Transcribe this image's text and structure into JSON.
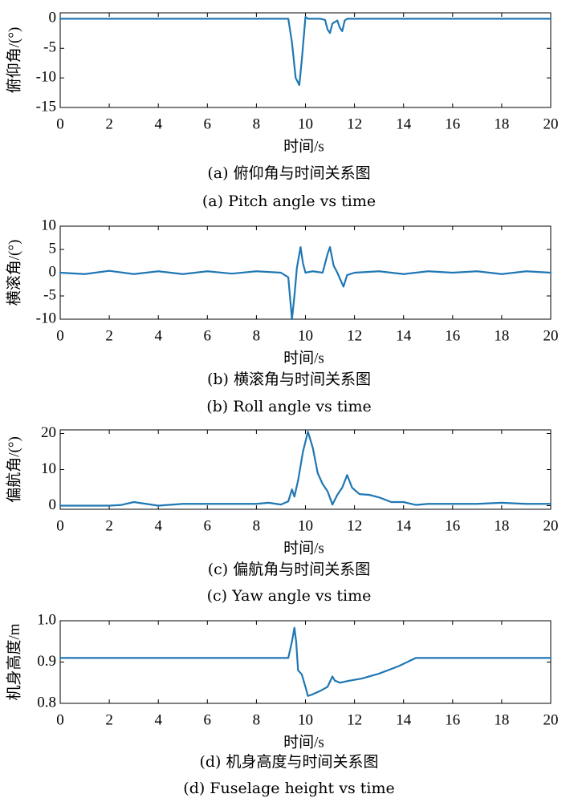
{
  "chart_data": [
    {
      "type": "line",
      "xlabel": "时间/s",
      "ylabel": "俯仰角/(°)",
      "xlim": [
        0,
        20
      ],
      "ylim": [
        -15,
        1
      ],
      "xticks": [
        "0",
        "2",
        "4",
        "6",
        "8",
        "10",
        "12",
        "14",
        "16",
        "18",
        "20"
      ],
      "yticks": [
        "0",
        "-5",
        "-10",
        "-15"
      ],
      "caption_cn": "(a) 俯仰角与时间关系图",
      "caption_en": "(a) Pitch angle vs time",
      "color": "#1f77b4",
      "series": [
        {
          "x": [
            0,
            2,
            4,
            6,
            8,
            9.3,
            9.45,
            9.6,
            9.75,
            9.85,
            10.0,
            10.1,
            10.3,
            10.6,
            10.8,
            10.9,
            11.0,
            11.1,
            11.3,
            11.4,
            11.5,
            11.6,
            11.7,
            12,
            14,
            16,
            18,
            20
          ],
          "y": [
            0,
            0,
            0,
            0,
            0,
            0,
            -4,
            -10,
            -11.2,
            -7,
            0.3,
            0,
            0,
            0,
            -0.2,
            -1.8,
            -2.4,
            -0.8,
            -0.3,
            -1.5,
            -2.1,
            -0.3,
            0,
            0,
            0,
            0,
            0,
            0
          ]
        }
      ]
    },
    {
      "type": "line",
      "xlabel": "时间/s",
      "ylabel": "横滚角/(°)",
      "xlim": [
        0,
        20
      ],
      "ylim": [
        -10,
        10
      ],
      "xticks": [
        "0",
        "2",
        "4",
        "6",
        "8",
        "10",
        "12",
        "14",
        "16",
        "18",
        "20"
      ],
      "yticks": [
        "10",
        "5",
        "0",
        "-5",
        "-10"
      ],
      "caption_cn": "(b) 横滚角与时间关系图",
      "caption_en": "(b) Roll angle vs time",
      "color": "#1f77b4",
      "series": [
        {
          "x": [
            0,
            1,
            2,
            3,
            4,
            5,
            6,
            7,
            8,
            9,
            9.3,
            9.45,
            9.55,
            9.65,
            9.8,
            9.9,
            10.0,
            10.3,
            10.7,
            10.9,
            11.0,
            11.15,
            11.3,
            11.55,
            11.7,
            12,
            13,
            14,
            15,
            16,
            17,
            18,
            19,
            20
          ],
          "y": [
            0,
            -0.3,
            0.4,
            -0.3,
            0.3,
            -0.3,
            0.3,
            -0.2,
            0.3,
            0,
            -1,
            -10,
            -5,
            1,
            5.5,
            2,
            0,
            0.3,
            0,
            4,
            5.5,
            1.5,
            0,
            -3,
            -0.5,
            0,
            0.3,
            -0.3,
            0.3,
            0,
            0.3,
            -0.3,
            0.3,
            0
          ]
        }
      ]
    },
    {
      "type": "line",
      "xlabel": "时间/s",
      "ylabel": "偏航角/(°)",
      "xlim": [
        0,
        20
      ],
      "ylim": [
        -1,
        21
      ],
      "xticks": [
        "0",
        "2",
        "4",
        "6",
        "8",
        "10",
        "12",
        "14",
        "16",
        "18",
        "20"
      ],
      "yticks": [
        "20",
        "10",
        "0"
      ],
      "caption_cn": "(c) 偏航角与时间关系图",
      "caption_en": "(c) Yaw angle vs time",
      "color": "#1f77b4",
      "series": [
        {
          "x": [
            0,
            1,
            2,
            2.5,
            3,
            4,
            5,
            6,
            7,
            8,
            8.5,
            9.0,
            9.3,
            9.45,
            9.55,
            9.7,
            9.9,
            10.1,
            10.3,
            10.5,
            10.7,
            10.9,
            11.1,
            11.3,
            11.5,
            11.7,
            11.9,
            12.2,
            12.6,
            13,
            13.5,
            14,
            14.5,
            15,
            16,
            17,
            18,
            19,
            20
          ],
          "y": [
            0,
            0,
            0,
            0.2,
            1,
            0,
            0.5,
            0.5,
            0.5,
            0.5,
            0.8,
            0.3,
            1.2,
            4.5,
            2.5,
            7,
            15,
            20.5,
            16,
            9,
            6,
            4,
            0.3,
            3,
            5,
            8.5,
            5,
            3.2,
            3,
            2.3,
            1,
            1,
            0.2,
            0.5,
            0.5,
            0.5,
            0.8,
            0.5,
            0.5
          ]
        }
      ]
    },
    {
      "type": "line",
      "xlabel": "时间/s",
      "ylabel": "机身高度/m",
      "xlim": [
        0,
        20
      ],
      "ylim": [
        0.8,
        1.0
      ],
      "xticks": [
        "0",
        "2",
        "4",
        "6",
        "8",
        "10",
        "12",
        "14",
        "16",
        "18",
        "20"
      ],
      "yticks": [
        "1.0",
        "0.9",
        "0.8"
      ],
      "caption_cn": "(d) 机身高度与时间关系图",
      "caption_en": "(d) Fuselage height vs time",
      "color": "#1f77b4",
      "series": [
        {
          "x": [
            0,
            2,
            4,
            6,
            8,
            9.0,
            9.3,
            9.45,
            9.55,
            9.62,
            9.7,
            9.85,
            10.0,
            10.1,
            10.3,
            10.6,
            10.9,
            11.1,
            11.2,
            11.4,
            11.8,
            12.3,
            13,
            13.8,
            14.5,
            15,
            16,
            18,
            20
          ],
          "y": [
            0.91,
            0.91,
            0.91,
            0.91,
            0.91,
            0.91,
            0.91,
            0.95,
            0.983,
            0.95,
            0.88,
            0.87,
            0.84,
            0.818,
            0.822,
            0.83,
            0.84,
            0.865,
            0.855,
            0.85,
            0.855,
            0.86,
            0.872,
            0.89,
            0.91,
            0.91,
            0.91,
            0.91,
            0.91
          ]
        }
      ]
    }
  ]
}
